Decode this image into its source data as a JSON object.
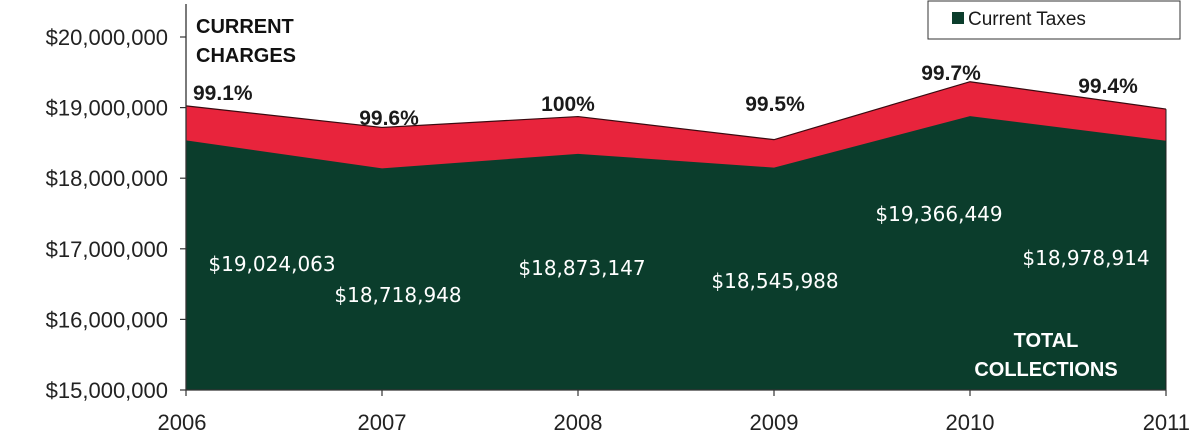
{
  "chart_data": {
    "type": "area",
    "x": [
      "2006",
      "2007",
      "2008",
      "2009",
      "2010",
      "2011"
    ],
    "ylim": [
      15000000,
      20000000
    ],
    "y_ticks": [
      "$15,000,000",
      "$16,000,000",
      "$17,000,000",
      "$18,000,000",
      "$19,000,000",
      "$20,000,000"
    ],
    "series": [
      {
        "key": "charges",
        "values": [
          19024063,
          18718948,
          18873147,
          18545988,
          19366449,
          18978914
        ],
        "color": "#e8243c"
      },
      {
        "name": "Current Taxes",
        "key": "taxes",
        "values": [
          18535000,
          18140000,
          18345000,
          18150000,
          18880000,
          18530000
        ],
        "color": "#0b3d2c"
      }
    ],
    "collection_rates": [
      "99.1%",
      "99.6%",
      "100%",
      "99.5%",
      "99.7%",
      "99.4%"
    ],
    "total_labels": [
      "$19,024,063",
      "$18,718,948",
      "$18,873,147",
      "$18,545,988",
      "$19,366,449",
      "$18,978,914"
    ],
    "annotations": {
      "current_charges": [
        "CURRENT",
        "CHARGES"
      ],
      "total_collections": [
        "TOTAL",
        "COLLECTIONS"
      ]
    },
    "legend": {
      "label": "Current Taxes",
      "position": "top-right"
    },
    "grid": false
  }
}
